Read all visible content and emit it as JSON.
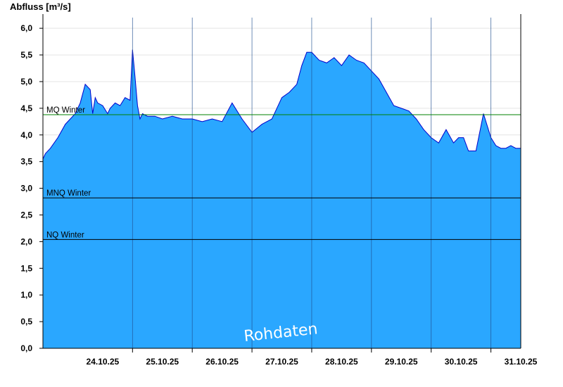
{
  "chart_data": {
    "type": "area",
    "ylabel": "Abfluss [m³/s]",
    "xlabel": "",
    "title": "",
    "ylim": [
      0,
      6.2
    ],
    "y_ticks": [
      "0,0",
      "0,5",
      "1,0",
      "1,5",
      "2,0",
      "2,5",
      "3,0",
      "3,5",
      "4,0",
      "4,5",
      "5,0",
      "5,5",
      "6,0"
    ],
    "x_range_days": [
      "23.10.25 12:00",
      "31.10.25 12:00"
    ],
    "x_ticks": [
      "24.10.25",
      "25.10.25",
      "26.10.25",
      "27.10.25",
      "28.10.25",
      "29.10.25",
      "30.10.25",
      "31.10.25"
    ],
    "grid": {
      "horizontal": true,
      "vertical_day_lines": true
    },
    "fill_color": "#2aa7ff",
    "line_color": "#0000cc",
    "reference_lines": [
      {
        "label": "MQ Winter",
        "value": 4.38,
        "color": "#008000"
      },
      {
        "label": "MNQ Winter",
        "value": 2.82,
        "color": "#000000"
      },
      {
        "label": "NQ Winter",
        "value": 2.04,
        "color": "#000000"
      }
    ],
    "watermark": "Rohdaten",
    "series": [
      {
        "x": [
          "23.10. 12:00",
          "23.10. 13:00",
          "23.10. 15:00",
          "23.10. 18:00",
          "23.10. 21:00",
          "23.10. 23:00",
          "24.10. 01:00",
          "24.10. 03:00",
          "24.10. 05:00",
          "24.10. 07:00",
          "24.10. 08:00",
          "24.10. 09:00",
          "24.10. 10:00",
          "24.10. 12:00",
          "24.10. 14:00",
          "24.10. 15:00",
          "24.10. 17:00",
          "24.10. 19:00",
          "24.10. 21:00",
          "24.10. 23:00",
          "25.10. 00:00",
          "25.10. 01:00",
          "25.10. 02:00",
          "25.10. 03:00",
          "25.10. 04:00",
          "25.10. 06:00",
          "25.10. 09:00",
          "25.10. 12:00",
          "25.10. 16:00",
          "25.10. 20:00",
          "26.10. 00:00",
          "26.10. 04:00",
          "26.10. 08:00",
          "26.10. 12:00",
          "26.10. 16:00",
          "26.10. 20:00",
          "27.10. 00:00",
          "27.10. 04:00",
          "27.10. 08:00",
          "27.10. 10:00",
          "27.10. 12:00",
          "27.10. 15:00",
          "27.10. 18:00",
          "27.10. 20:00",
          "27.10. 22:00",
          "28.10. 00:00",
          "28.10. 03:00",
          "28.10. 06:00",
          "28.10. 09:00",
          "28.10. 12:00",
          "28.10. 15:00",
          "28.10. 18:00",
          "28.10. 21:00",
          "29.10. 00:00",
          "29.10. 03:00",
          "29.10. 06:00",
          "29.10. 09:00",
          "29.10. 12:00",
          "29.10. 15:00",
          "29.10. 18:00",
          "29.10. 21:00",
          "30.10. 00:00",
          "30.10. 03:00",
          "30.10. 06:00",
          "30.10. 09:00",
          "30.10. 11:00",
          "30.10. 13:00",
          "30.10. 15:00",
          "30.10. 18:00",
          "30.10. 21:00",
          "31.10. 00:00",
          "31.10. 02:00",
          "31.10. 04:00",
          "31.10. 06:00",
          "31.10. 08:00",
          "31.10. 10:00",
          "31.10. 12:00"
        ],
        "values": [
          3.55,
          3.65,
          3.75,
          3.95,
          4.2,
          4.3,
          4.4,
          4.6,
          4.95,
          4.85,
          4.4,
          4.7,
          4.6,
          4.55,
          4.4,
          4.5,
          4.6,
          4.55,
          4.7,
          4.65,
          5.6,
          5.1,
          4.55,
          4.3,
          4.4,
          4.35,
          4.35,
          4.3,
          4.35,
          4.3,
          4.3,
          4.25,
          4.3,
          4.25,
          4.6,
          4.3,
          4.05,
          4.2,
          4.3,
          4.5,
          4.7,
          4.8,
          4.95,
          5.3,
          5.55,
          5.55,
          5.4,
          5.35,
          5.45,
          5.3,
          5.5,
          5.4,
          5.35,
          5.2,
          5.05,
          4.8,
          4.55,
          4.5,
          4.45,
          4.3,
          4.1,
          3.95,
          3.85,
          4.1,
          3.85,
          3.95,
          3.95,
          3.7,
          3.7,
          4.4,
          3.95,
          3.8,
          3.75,
          3.75,
          3.8,
          3.75,
          3.75
        ]
      }
    ]
  }
}
